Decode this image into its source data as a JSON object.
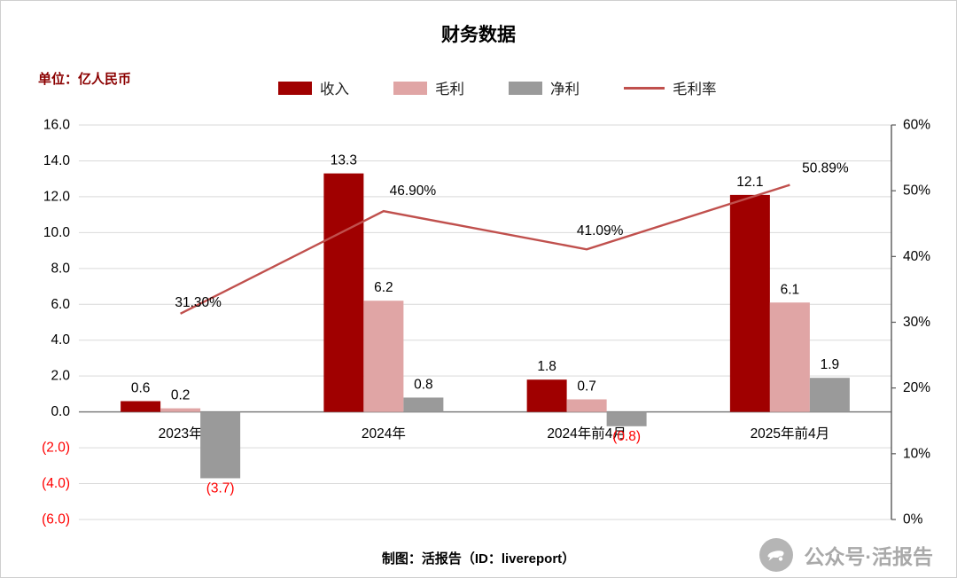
{
  "title": "财务数据",
  "unit_label": "单位：亿人民币",
  "footer": "制图：活报告（ID：livereport）",
  "watermark": "公众号·活报告",
  "colors": {
    "revenue": "#a00000",
    "gross": "#e0a5a5",
    "net": "#9a9a9a",
    "margin_line": "#c0504d",
    "negative_label": "#ff0000",
    "grid": "#d9d9d9",
    "zero_line": "#7f7f7f",
    "right_spine": "#595959",
    "unit_text": "#8b0000"
  },
  "legend": [
    {
      "label": "收入",
      "type": "bar",
      "color_key": "revenue"
    },
    {
      "label": "毛利",
      "type": "bar",
      "color_key": "gross"
    },
    {
      "label": "净利",
      "type": "bar",
      "color_key": "net"
    },
    {
      "label": "毛利率",
      "type": "line",
      "color_key": "margin_line"
    }
  ],
  "chart_data": {
    "type": "bar+line",
    "title": "财务数据",
    "categories": [
      "2023年",
      "2024年",
      "2024年前4月",
      "2025年前4月"
    ],
    "series": [
      {
        "name": "收入",
        "type": "bar",
        "color_key": "revenue",
        "values": [
          0.6,
          13.3,
          1.8,
          12.1
        ],
        "labels": [
          "0.6",
          "13.3",
          "1.8",
          "12.1"
        ]
      },
      {
        "name": "毛利",
        "type": "bar",
        "color_key": "gross",
        "values": [
          0.2,
          6.2,
          0.7,
          6.1
        ],
        "labels": [
          "0.2",
          "6.2",
          "0.7",
          "6.1"
        ]
      },
      {
        "name": "净利",
        "type": "bar",
        "color_key": "net",
        "values": [
          -3.7,
          0.8,
          -0.8,
          1.9
        ],
        "labels": [
          "(3.7)",
          "0.8",
          "(0.8)",
          "1.9"
        ]
      },
      {
        "name": "毛利率",
        "type": "line",
        "axis": "right",
        "color_key": "margin_line",
        "values": [
          31.3,
          46.9,
          41.09,
          50.89
        ],
        "labels": [
          "31.30%",
          "46.90%",
          "41.09%",
          "50.89%"
        ]
      }
    ],
    "left_axis": {
      "min": -6,
      "max": 16,
      "step": 2,
      "tick_labels": [
        "16.0",
        "14.0",
        "12.0",
        "10.0",
        "8.0",
        "6.0",
        "4.0",
        "2.0",
        "0.0",
        "(2.0)",
        "(4.0)",
        "(6.0)"
      ]
    },
    "right_axis": {
      "min": 0,
      "max": 60,
      "step": 10,
      "tick_labels": [
        "60%",
        "50%",
        "40%",
        "30%",
        "20%",
        "10%",
        "0%"
      ]
    },
    "grid": true,
    "legend_position": "top"
  }
}
